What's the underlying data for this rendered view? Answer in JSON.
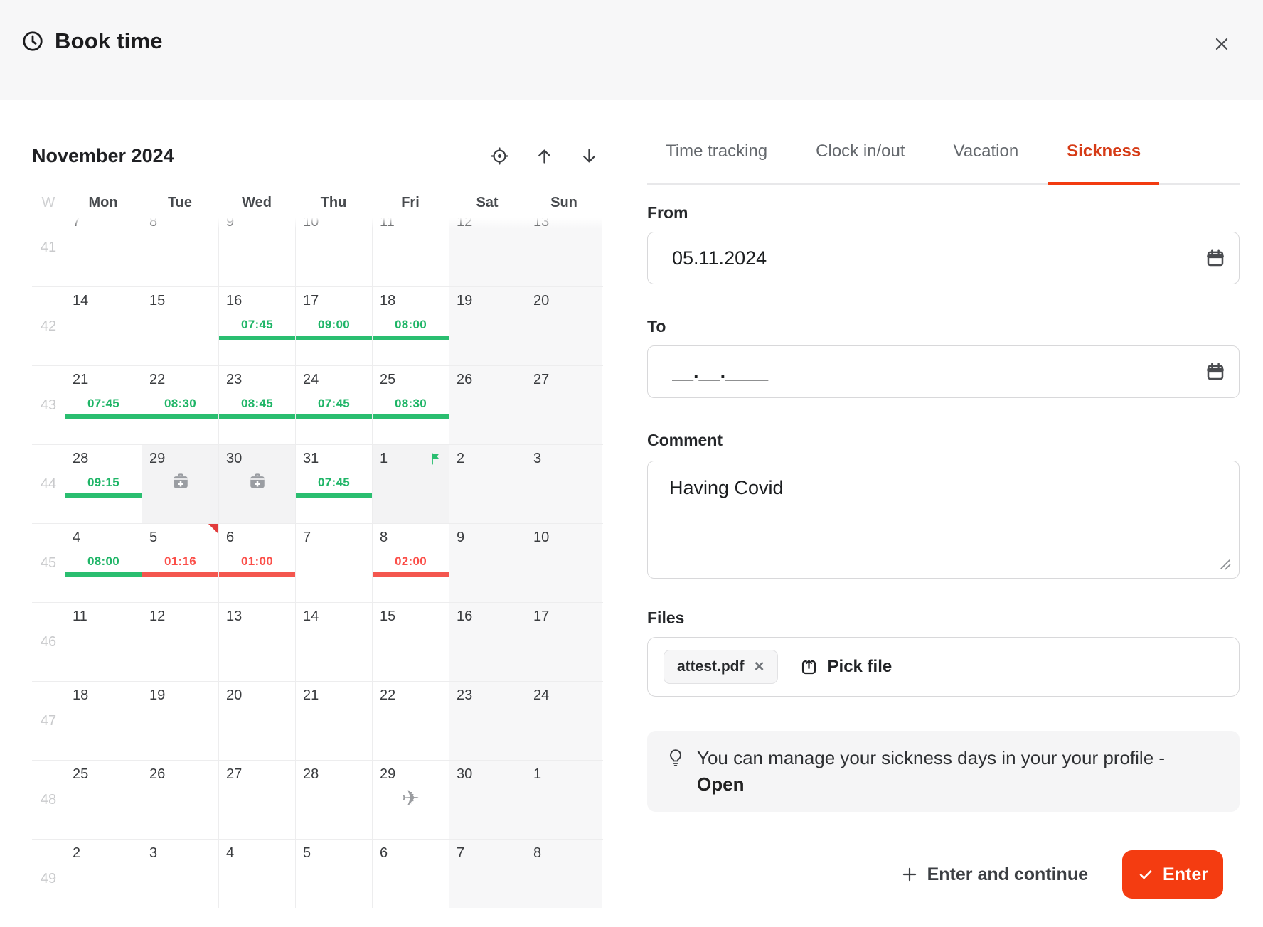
{
  "header": {
    "title": "Book time",
    "clock_icon": "clock-icon",
    "close_icon": "close-icon"
  },
  "calendar": {
    "month_title": "November 2024",
    "week_col_header": "W",
    "day_headers": [
      "Mon",
      "Tue",
      "Wed",
      "Thu",
      "Fri",
      "Sat",
      "Sun"
    ],
    "nav_icons": [
      "locate-icon",
      "arrow-up-icon",
      "arrow-down-icon"
    ],
    "weeks": [
      {
        "num": 41,
        "clip_top": true,
        "days": [
          {
            "d": 7
          },
          {
            "d": 8
          },
          {
            "d": 9
          },
          {
            "d": 10
          },
          {
            "d": 11
          },
          {
            "d": 12,
            "we": true
          },
          {
            "d": 13,
            "we": true
          }
        ]
      },
      {
        "num": 42,
        "days": [
          {
            "d": 14
          },
          {
            "d": 15
          },
          {
            "d": 16,
            "t": "07:45",
            "s": "ok"
          },
          {
            "d": 17,
            "t": "09:00",
            "s": "ok"
          },
          {
            "d": 18,
            "t": "08:00",
            "s": "ok"
          },
          {
            "d": 19,
            "we": true
          },
          {
            "d": 20,
            "we": true
          }
        ]
      },
      {
        "num": 43,
        "days": [
          {
            "d": 21,
            "t": "07:45",
            "s": "ok"
          },
          {
            "d": 22,
            "t": "08:30",
            "s": "ok"
          },
          {
            "d": 23,
            "t": "08:45",
            "s": "ok"
          },
          {
            "d": 24,
            "t": "07:45",
            "s": "ok"
          },
          {
            "d": 25,
            "t": "08:30",
            "s": "ok"
          },
          {
            "d": 26,
            "we": true
          },
          {
            "d": 27,
            "we": true
          }
        ]
      },
      {
        "num": 44,
        "days": [
          {
            "d": 28,
            "t": "09:15",
            "s": "ok"
          },
          {
            "d": 29,
            "icon": "medical",
            "off": true
          },
          {
            "d": 30,
            "icon": "medical",
            "off": true
          },
          {
            "d": 31,
            "t": "07:45",
            "s": "ok"
          },
          {
            "d": 1,
            "icon": "flag",
            "off": true
          },
          {
            "d": 2,
            "we": true
          },
          {
            "d": 3,
            "we": true
          }
        ]
      },
      {
        "num": 45,
        "days": [
          {
            "d": 4,
            "t": "08:00",
            "s": "ok"
          },
          {
            "d": 5,
            "t": "01:16",
            "s": "low",
            "icon": "corner"
          },
          {
            "d": 6,
            "t": "01:00",
            "s": "low"
          },
          {
            "d": 7
          },
          {
            "d": 8,
            "t": "02:00",
            "s": "low"
          },
          {
            "d": 9,
            "we": true
          },
          {
            "d": 10,
            "we": true
          }
        ]
      },
      {
        "num": 46,
        "days": [
          {
            "d": 11
          },
          {
            "d": 12
          },
          {
            "d": 13
          },
          {
            "d": 14
          },
          {
            "d": 15
          },
          {
            "d": 16,
            "we": true
          },
          {
            "d": 17,
            "we": true
          }
        ]
      },
      {
        "num": 47,
        "days": [
          {
            "d": 18
          },
          {
            "d": 19
          },
          {
            "d": 20
          },
          {
            "d": 21
          },
          {
            "d": 22
          },
          {
            "d": 23,
            "we": true
          },
          {
            "d": 24,
            "we": true
          }
        ]
      },
      {
        "num": 48,
        "days": [
          {
            "d": 25
          },
          {
            "d": 26
          },
          {
            "d": 27
          },
          {
            "d": 28
          },
          {
            "d": 29,
            "icon": "plane"
          },
          {
            "d": 30,
            "we": true
          },
          {
            "d": 1,
            "we": true
          }
        ]
      },
      {
        "num": 49,
        "days": [
          {
            "d": 2
          },
          {
            "d": 3
          },
          {
            "d": 4
          },
          {
            "d": 5
          },
          {
            "d": 6
          },
          {
            "d": 7,
            "we": true
          },
          {
            "d": 8,
            "we": true
          }
        ]
      }
    ]
  },
  "tabs": [
    {
      "label": "Time tracking",
      "active": false
    },
    {
      "label": "Clock in/out",
      "active": false
    },
    {
      "label": "Vacation",
      "active": false
    },
    {
      "label": "Sickness",
      "active": true
    }
  ],
  "form": {
    "from_label": "From",
    "from_value": "05.11.2024",
    "to_label": "To",
    "to_placeholder": "__.__.____",
    "comment_label": "Comment",
    "comment_value": "Having Covid",
    "files_label": "Files",
    "file_chip_label": "attest.pdf",
    "file_chip_remove_icon": "close-icon",
    "pick_file_label": "Pick file",
    "pick_file_icon": "upload-icon",
    "info_icon": "lightbulb-icon",
    "info_line1": "You can manage your sickness days in your your profile -",
    "info_line2": "Open",
    "enter_continue_label": "Enter and continue",
    "enter_label": "Enter"
  },
  "colors": {
    "accent_red": "#f43c11",
    "tab_active_red": "#d63b16",
    "time_green": "#1fb567",
    "bar_green": "#2abe70",
    "time_red": "#fb4f49",
    "bar_red": "#f4564e",
    "header_bg": "#f7f7f8",
    "weekend_bg": "#f7f7f8",
    "absence_bg": "#f3f3f4"
  }
}
